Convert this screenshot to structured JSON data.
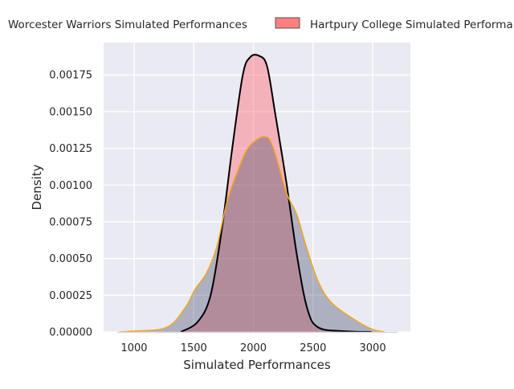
{
  "chart_data": {
    "type": "area",
    "title": "",
    "xlabel": "Simulated Performances",
    "ylabel": "Density",
    "xlim": [
      744,
      3316
    ],
    "ylim": [
      0,
      0.00197
    ],
    "grid": true,
    "legend_placement": "top (outside, cropped)",
    "x_ticks": [
      "1000",
      "1500",
      "2000",
      "2500",
      "3000"
    ],
    "x_tick_values": [
      1000,
      1500,
      2000,
      2500,
      3000
    ],
    "y_ticks": [
      "0.00000",
      "0.00025",
      "0.00050",
      "0.00075",
      "0.00100",
      "0.00125",
      "0.00150",
      "0.00175"
    ],
    "y_tick_values": [
      0,
      0.00025,
      0.0005,
      0.00075,
      0.001,
      0.00125,
      0.0015,
      0.00175
    ],
    "legend": [
      "Worcester Warriors Simulated Performances",
      "Hartpury College Simulated Performa"
    ],
    "series": [
      {
        "name": "Hartpury College Simulated Performances",
        "fill_color": "rgba(255,110,120,0.45)",
        "line_color": "#000000",
        "x": [
          1392,
          1534,
          1641,
          1737,
          1824,
          1911,
          1972,
          2047,
          2114,
          2182,
          2276,
          2363,
          2451,
          2545,
          2767,
          2990
        ],
        "y": [
          0,
          7e-05,
          0.00025,
          0.00071,
          0.00126,
          0.00175,
          0.00187,
          0.00188,
          0.00181,
          0.00149,
          0.00102,
          0.00053,
          0.00016,
          3e-05,
          5e-06,
          0
        ]
      },
      {
        "name": "Worcester Warriors Simulated Performances",
        "fill_color": "rgba(60,70,100,0.35)",
        "line_color": "#f0a81c",
        "x": [
          880,
          973,
          1269,
          1424,
          1511,
          1606,
          1693,
          1780,
          1875,
          1962,
          2090,
          2164,
          2276,
          2363,
          2451,
          2545,
          2653,
          2835,
          2990,
          3100
        ],
        "y": [
          0,
          5e-06,
          3e-05,
          0.00016,
          0.00029,
          0.0004,
          0.00058,
          0.00089,
          0.00111,
          0.00126,
          0.00133,
          0.00126,
          0.00095,
          0.0008,
          0.00056,
          0.00034,
          0.0002,
          9e-05,
          2e-05,
          0
        ]
      }
    ],
    "colors": {
      "background": "#eaeaf2",
      "grid": "#ffffff",
      "legend_patch": "#ff7f7f"
    }
  }
}
